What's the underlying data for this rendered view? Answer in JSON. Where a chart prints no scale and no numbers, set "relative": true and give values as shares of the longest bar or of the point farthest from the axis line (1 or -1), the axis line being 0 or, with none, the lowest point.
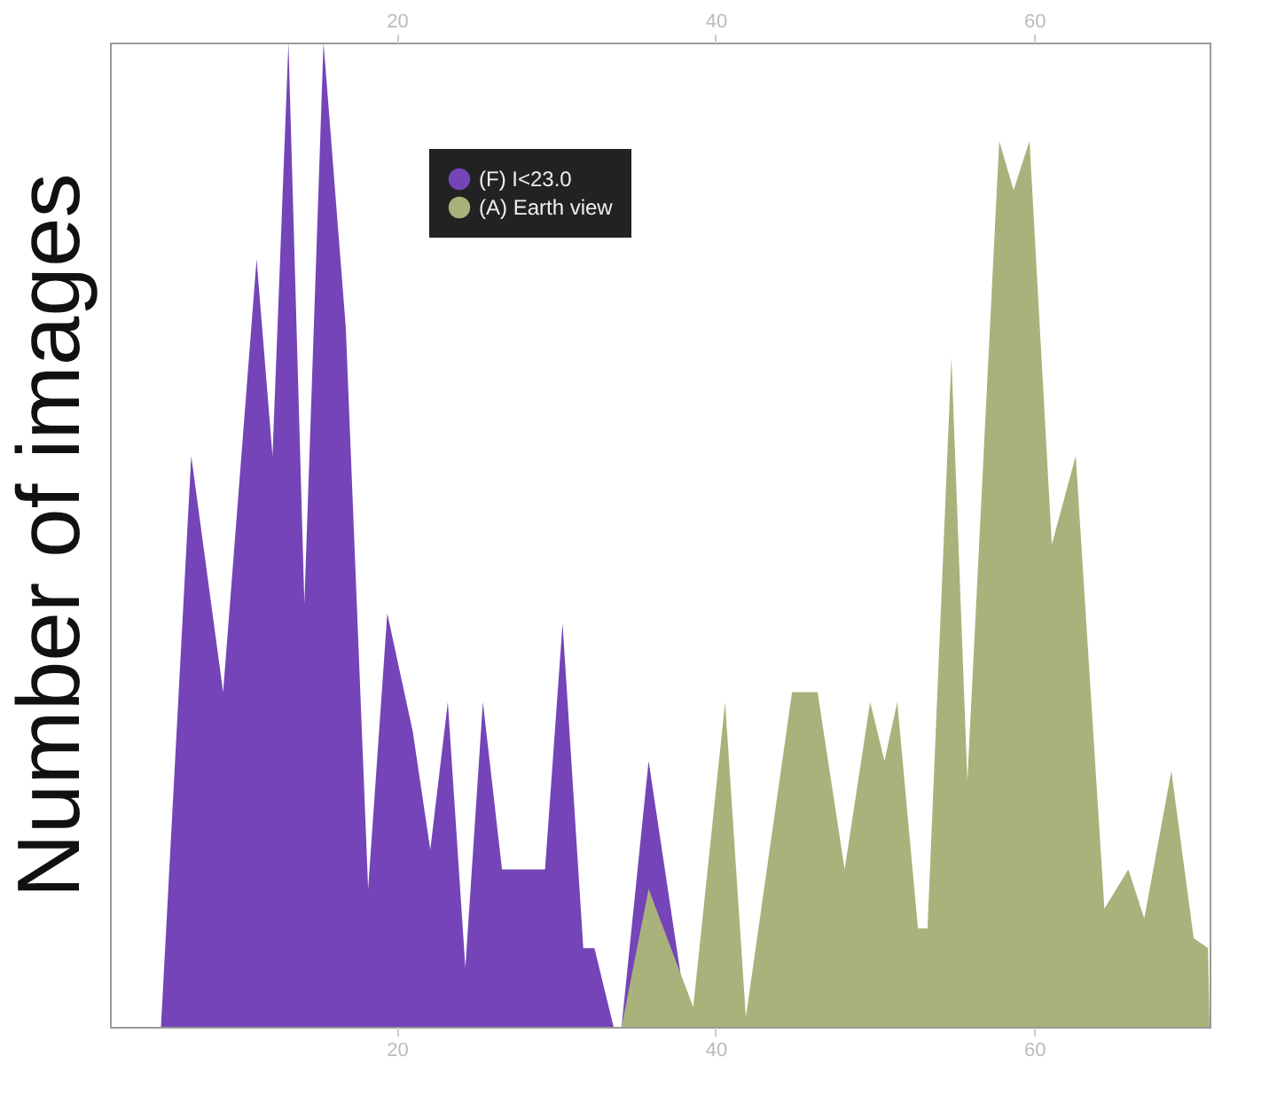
{
  "chart_data": {
    "type": "area",
    "ylabel": "Number of images",
    "relative": true,
    "legend": "top left",
    "xlim": [
      2,
      71
    ],
    "xticks": [
      20,
      40,
      60
    ],
    "x2lim": [
      2,
      71
    ],
    "x2ticks": [
      20,
      40,
      60
    ],
    "series": [
      {
        "name": "(F) I<23.0",
        "color": "#7444b8",
        "x": [
          2.0,
          5.2,
          7.1,
          9.1,
          11.2,
          12.2,
          13.2,
          14.2,
          15.4,
          16.8,
          18.2,
          19.4,
          21.0,
          22.1,
          23.2,
          24.3,
          25.4,
          26.6,
          27.9,
          29.3,
          30.4,
          31.7,
          32.4,
          33.6,
          34.1,
          35.8,
          38.3
        ],
        "values": [
          0,
          0,
          0.58,
          0.34,
          0.78,
          0.58,
          1.0,
          0.43,
          1.0,
          0.71,
          0.14,
          0.42,
          0.3,
          0.18,
          0.33,
          0.06,
          0.33,
          0.16,
          0.16,
          0.16,
          0.41,
          0.08,
          0.08,
          0,
          0,
          0.27,
          0
        ]
      },
      {
        "name": "(A) Earth view",
        "color": "#a9b27a",
        "x": [
          34.1,
          35.8,
          38.6,
          40.6,
          41.9,
          44.8,
          46.4,
          48.1,
          49.7,
          50.6,
          51.4,
          52.7,
          53.3,
          54.8,
          55.8,
          57.8,
          58.7,
          59.7,
          61.1,
          62.6,
          64.4,
          65.9,
          66.9,
          68.6,
          70.0,
          70.9,
          71.0
        ],
        "values": [
          0,
          0.14,
          0.02,
          0.33,
          0.01,
          0.34,
          0.34,
          0.16,
          0.33,
          0.27,
          0.33,
          0.1,
          0.1,
          0.68,
          0.25,
          0.9,
          0.85,
          0.9,
          0.49,
          0.58,
          0.12,
          0.16,
          0.11,
          0.26,
          0.09,
          0.08,
          0
        ]
      }
    ]
  }
}
